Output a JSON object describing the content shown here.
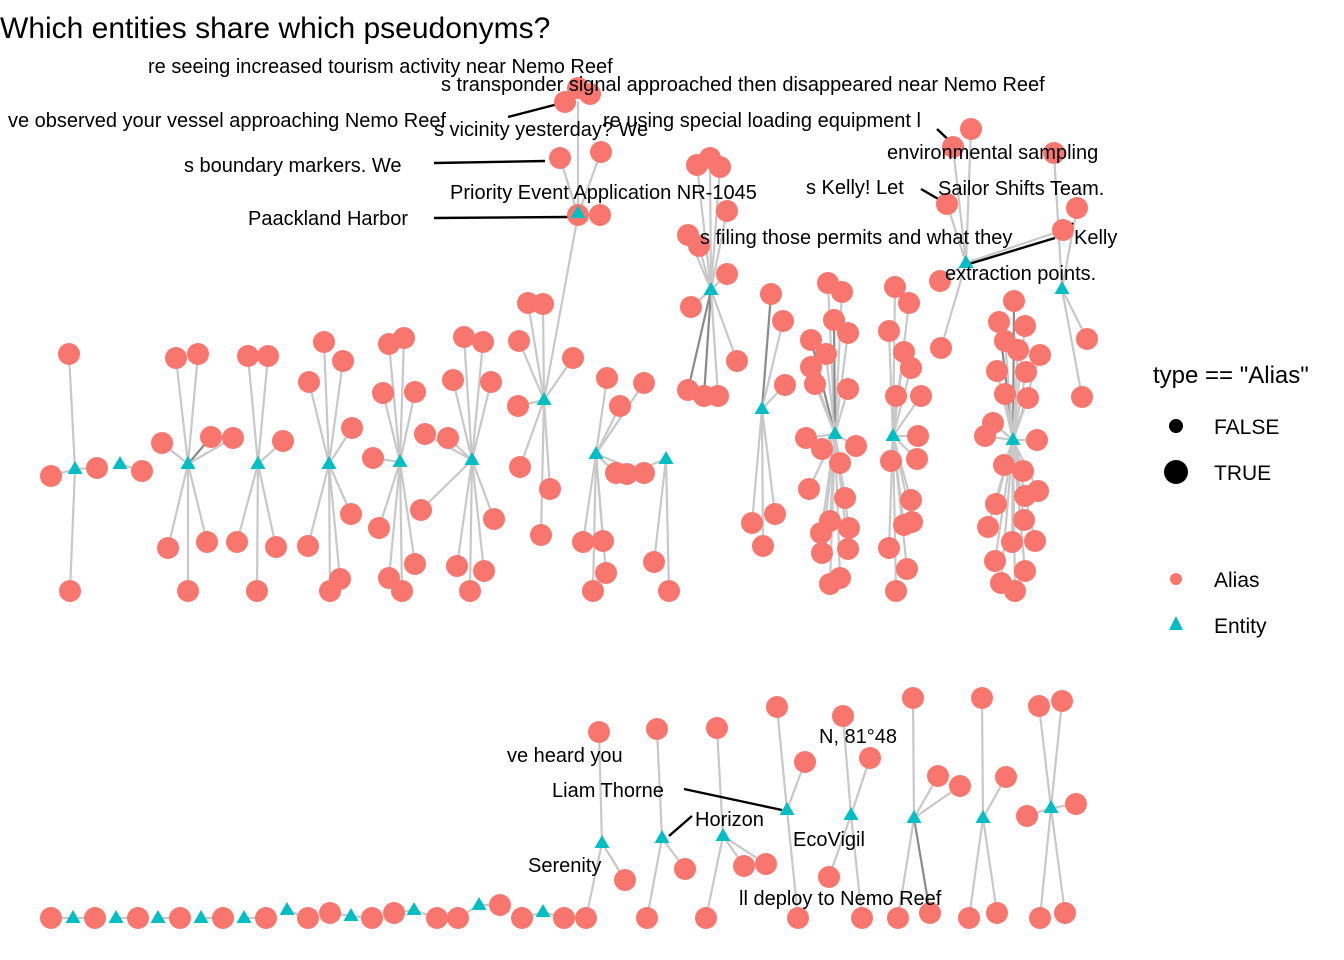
{
  "title": "Which entities share which pseudonyms?",
  "colors": {
    "alias": "#F8766D",
    "entity": "#00BFC4",
    "edge": "#c8c8c8"
  },
  "legend_size": {
    "title": "type == \"Alias\"",
    "items": [
      "FALSE",
      "TRUE"
    ]
  },
  "legend_type": {
    "items": [
      "Alias",
      "Entity"
    ]
  },
  "labels": [
    "re seeing increased tourism activity near Nemo Reef",
    "s transponder signal approached then disappeared near Nemo Reef",
    "ve observed your vessel approaching Nemo Reef",
    "re using special loading equipment l",
    "s vicinity yesterday? We",
    "environmental sampling",
    "s boundary markers. We",
    "Priority Event Application NR-1045",
    "s Kelly! Let",
    "Sailor Shifts Team.",
    "Paackland Harbor",
    "s filing those permits and what they",
    "Kelly",
    "extraction points.",
    "N, 81°48",
    "ve heard you",
    "Liam Thorne",
    "Horizon",
    "EcoVigil",
    "Serenity",
    "ll deploy to Nemo Reef"
  ]
}
